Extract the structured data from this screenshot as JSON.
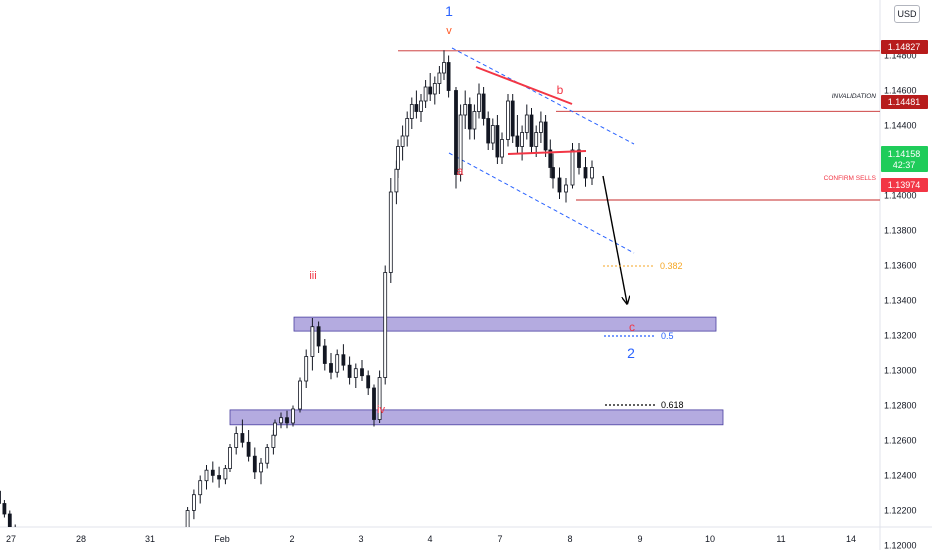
{
  "currency": "USD",
  "chart_data": {
    "type": "candlestick",
    "y_axis": {
      "ylim": [
        1.1188,
        1.1504
      ],
      "ticks": [
        "1.14800",
        "1.14600",
        "1.14400",
        "1.14200",
        "1.14000",
        "1.13800",
        "1.13600",
        "1.13400",
        "1.13200",
        "1.13000",
        "1.12800",
        "1.12600",
        "1.12400",
        "1.12200",
        "1.12000"
      ]
    },
    "x_axis": {
      "ticks": [
        "27",
        "28",
        "31",
        "Feb",
        "2",
        "3",
        "4",
        "7",
        "8",
        "9",
        "10",
        "11",
        "14"
      ]
    },
    "price_tags": [
      {
        "value": "1.14827",
        "sub": "",
        "color": "#b71c1c"
      },
      {
        "value": "1.14481",
        "sub": "",
        "color": "#b71c1c"
      },
      {
        "value": "1.14158",
        "sub": "42:37",
        "color": "#1fcc5a"
      },
      {
        "value": "1.13974",
        "sub": "",
        "color": "#f23645"
      }
    ],
    "horizontal_lines": [
      {
        "price": 1.14827,
        "label": ""
      },
      {
        "price": 1.14481,
        "label": "INVALIDATION"
      },
      {
        "price": 1.13974,
        "label": "CONFIRM SELLS"
      }
    ],
    "zones": [
      {
        "top": 1.13305,
        "bottom": 1.13225
      },
      {
        "top": 1.12775,
        "bottom": 1.1269
      }
    ],
    "fib_levels": [
      {
        "ratio": "0.382",
        "color": "#f5a623"
      },
      {
        "ratio": "0.5",
        "color": "#2962ff"
      },
      {
        "ratio": "0.618",
        "color": "#000000"
      }
    ],
    "wave_labels": [
      {
        "text": "1",
        "color": "#2962ff"
      },
      {
        "text": "v",
        "color": "#ff5722"
      },
      {
        "text": "iii",
        "color": "#f23645"
      },
      {
        "text": "iv",
        "color": "#f23645"
      },
      {
        "text": "a",
        "color": "#f23645"
      },
      {
        "text": "b",
        "color": "#f23645"
      },
      {
        "text": "c",
        "color": "#f23645"
      },
      {
        "text": "2",
        "color": "#2962ff"
      }
    ],
    "series": [
      {
        "name": "",
        "values": [
          [
            1.1231,
            1.1232,
            1.1222,
            1.1224
          ],
          [
            1.1224,
            1.1226,
            1.1216,
            1.1218
          ],
          [
            1.1218,
            1.122,
            1.1207,
            1.121
          ],
          [
            1.121,
            1.1212,
            1.12,
            1.1203
          ],
          [
            1.1203,
            1.1205,
            1.1192,
            1.1194
          ],
          [
            1.119,
            1.1198,
            1.1184,
            1.1196
          ],
          [
            1.1196,
            1.121,
            1.1194,
            1.1208
          ],
          [
            1.1208,
            1.1222,
            1.1204,
            1.122
          ],
          [
            1.122,
            1.1232,
            1.1215,
            1.1229
          ],
          [
            1.1229,
            1.124,
            1.1224,
            1.1237
          ],
          [
            1.1237,
            1.1246,
            1.1232,
            1.1243
          ],
          [
            1.1243,
            1.1248,
            1.1236,
            1.124
          ],
          [
            1.124,
            1.1245,
            1.1233,
            1.1238
          ],
          [
            1.1238,
            1.1246,
            1.1235,
            1.1244
          ],
          [
            1.1244,
            1.1258,
            1.1242,
            1.1256
          ],
          [
            1.1256,
            1.1268,
            1.1252,
            1.1264
          ],
          [
            1.1264,
            1.1272,
            1.1256,
            1.1259
          ],
          [
            1.1259,
            1.1266,
            1.1248,
            1.1251
          ],
          [
            1.1251,
            1.1256,
            1.1238,
            1.1242
          ],
          [
            1.1242,
            1.125,
            1.1235,
            1.1247
          ],
          [
            1.1247,
            1.1258,
            1.1244,
            1.1256
          ],
          [
            1.1256,
            1.1266,
            1.1252,
            1.1263
          ],
          [
            1.1263,
            1.1272,
            1.1262,
            1.127
          ],
          [
            1.127,
            1.1276,
            1.1267,
            1.1273
          ],
          [
            1.1273,
            1.1277,
            1.1267,
            1.127
          ],
          [
            1.127,
            1.128,
            1.1268,
            1.1278
          ],
          [
            1.1278,
            1.1296,
            1.1276,
            1.1294
          ],
          [
            1.1294,
            1.1312,
            1.129,
            1.1308
          ],
          [
            1.1308,
            1.133,
            1.13,
            1.1325
          ],
          [
            1.1325,
            1.1328,
            1.131,
            1.1314
          ],
          [
            1.1314,
            1.1318,
            1.13,
            1.1304
          ],
          [
            1.1304,
            1.131,
            1.1295,
            1.1299
          ],
          [
            1.1299,
            1.1312,
            1.1296,
            1.1309
          ],
          [
            1.1309,
            1.1315,
            1.13,
            1.1303
          ],
          [
            1.1303,
            1.1308,
            1.1292,
            1.1296
          ],
          [
            1.1296,
            1.1304,
            1.129,
            1.1301
          ],
          [
            1.1301,
            1.1306,
            1.1294,
            1.1297
          ],
          [
            1.1297,
            1.13,
            1.1286,
            1.129
          ],
          [
            1.129,
            1.1292,
            1.1268,
            1.1272
          ],
          [
            1.1272,
            1.13,
            1.127,
            1.1296
          ],
          [
            1.1296,
            1.136,
            1.1292,
            1.1356
          ],
          [
            1.1356,
            1.141,
            1.135,
            1.1402
          ],
          [
            1.1402,
            1.142,
            1.1395,
            1.1415
          ],
          [
            1.1415,
            1.1432,
            1.141,
            1.1428
          ],
          [
            1.1428,
            1.144,
            1.142,
            1.1434
          ],
          [
            1.1434,
            1.1448,
            1.1428,
            1.1444
          ],
          [
            1.1444,
            1.1456,
            1.1438,
            1.1452
          ],
          [
            1.1452,
            1.146,
            1.1444,
            1.1448
          ],
          [
            1.1448,
            1.1458,
            1.1442,
            1.1454
          ],
          [
            1.1454,
            1.1466,
            1.145,
            1.1462
          ],
          [
            1.1462,
            1.147,
            1.1454,
            1.1458
          ],
          [
            1.1458,
            1.1468,
            1.1452,
            1.1464
          ],
          [
            1.1464,
            1.1474,
            1.1458,
            1.147
          ],
          [
            1.147,
            1.1483,
            1.1466,
            1.1476
          ],
          [
            1.1476,
            1.148,
            1.1456,
            1.146
          ],
          [
            1.146,
            1.1462,
            1.1404,
            1.1412
          ],
          [
            1.1412,
            1.1452,
            1.1408,
            1.1446
          ],
          [
            1.1446,
            1.146,
            1.1438,
            1.1452
          ],
          [
            1.1452,
            1.1456,
            1.1432,
            1.1438
          ],
          [
            1.1438,
            1.1452,
            1.1432,
            1.1448
          ],
          [
            1.1448,
            1.1464,
            1.1444,
            1.1458
          ],
          [
            1.1458,
            1.1462,
            1.144,
            1.1444
          ],
          [
            1.1444,
            1.1448,
            1.1426,
            1.143
          ],
          [
            1.143,
            1.1444,
            1.1426,
            1.144
          ],
          [
            1.144,
            1.1446,
            1.1418,
            1.1422
          ],
          [
            1.1422,
            1.1436,
            1.1418,
            1.1432
          ],
          [
            1.1432,
            1.1458,
            1.1428,
            1.1454
          ],
          [
            1.1454,
            1.1458,
            1.143,
            1.1434
          ],
          [
            1.1434,
            1.1446,
            1.1424,
            1.1428
          ],
          [
            1.1428,
            1.144,
            1.142,
            1.1436
          ],
          [
            1.1436,
            1.1452,
            1.1432,
            1.1446
          ],
          [
            1.1446,
            1.145,
            1.1424,
            1.1428
          ],
          [
            1.1428,
            1.144,
            1.1422,
            1.1436
          ],
          [
            1.1436,
            1.1448,
            1.143,
            1.1442
          ],
          [
            1.1442,
            1.1446,
            1.1422,
            1.1426
          ],
          [
            1.1426,
            1.1432,
            1.141,
            1.1416
          ],
          [
            1.1416,
            1.1424,
            1.1404,
            1.141
          ],
          [
            1.141,
            1.1416,
            1.1398,
            1.1402
          ],
          [
            1.1402,
            1.141,
            1.1396,
            1.1406
          ],
          [
            1.1406,
            1.143,
            1.1404,
            1.1426
          ],
          [
            1.1426,
            1.143,
            1.1412,
            1.1416
          ],
          [
            1.1416,
            1.1422,
            1.1405,
            1.141
          ],
          [
            1.141,
            1.142,
            1.1406,
            1.1416
          ]
        ]
      }
    ]
  }
}
